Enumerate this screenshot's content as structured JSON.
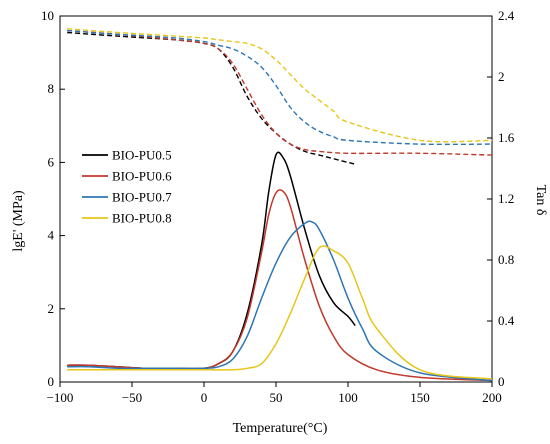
{
  "chart_data": {
    "type": "line",
    "title": "",
    "xlabel": "Temperature(°C)",
    "ylabel": "lgE' (MPa)",
    "y2label": "Tan δ",
    "xlim": [
      -100,
      200
    ],
    "ylim": [
      0,
      10
    ],
    "y2lim": [
      0,
      2.4
    ],
    "xticks": [
      -100,
      -50,
      0,
      50,
      100,
      150,
      200
    ],
    "xtick_labels": [
      "−100",
      "−50",
      "0",
      "50",
      "100",
      "150",
      "200"
    ],
    "yticks": [
      0,
      2,
      4,
      6,
      8,
      10
    ],
    "ytick_labels": [
      "0",
      "2",
      "4",
      "6",
      "8",
      "10"
    ],
    "y2ticks": [
      0,
      0.4,
      0.8,
      1.2,
      1.6,
      2.0,
      2.4
    ],
    "y2tick_labels": [
      "0",
      "0.4",
      "0.8",
      "1.2",
      "1.6",
      "2",
      "2.4"
    ],
    "grid": false,
    "legend_position": "center-left",
    "series": [
      {
        "name": "BIO-PU0.5",
        "color": "#000000",
        "tan_delta": {
          "x": [
            -95,
            -80,
            -60,
            -40,
            -20,
            0,
            10,
            20,
            30,
            40,
            45,
            50,
            55,
            60,
            70,
            80,
            90,
            100,
            105
          ],
          "y": [
            0.11,
            0.11,
            0.1,
            0.09,
            0.09,
            0.09,
            0.12,
            0.2,
            0.45,
            0.9,
            1.25,
            1.49,
            1.47,
            1.35,
            1.0,
            0.7,
            0.52,
            0.43,
            0.37
          ]
        },
        "storage_modulus": {
          "x": [
            -95,
            -60,
            -20,
            0,
            10,
            20,
            30,
            40,
            50,
            60,
            70,
            80,
            90,
            100,
            105
          ],
          "y": [
            9.55,
            9.45,
            9.35,
            9.25,
            9.1,
            8.6,
            7.8,
            7.2,
            6.8,
            6.5,
            6.3,
            6.2,
            6.1,
            6.0,
            5.95
          ]
        }
      },
      {
        "name": "BIO-PU0.6",
        "color": "#c0392b",
        "tan_delta": {
          "x": [
            -95,
            -80,
            -60,
            -40,
            -20,
            0,
            10,
            20,
            30,
            40,
            45,
            50,
            55,
            60,
            70,
            80,
            90,
            100,
            120,
            150,
            200
          ],
          "y": [
            0.11,
            0.11,
            0.1,
            0.09,
            0.09,
            0.09,
            0.12,
            0.2,
            0.42,
            0.85,
            1.1,
            1.24,
            1.25,
            1.15,
            0.8,
            0.5,
            0.3,
            0.18,
            0.08,
            0.03,
            0.01
          ]
        },
        "storage_modulus": {
          "x": [
            -95,
            -60,
            -20,
            0,
            10,
            20,
            30,
            40,
            50,
            60,
            70,
            80,
            100,
            150,
            200
          ],
          "y": [
            9.6,
            9.5,
            9.35,
            9.25,
            9.1,
            8.7,
            8.0,
            7.3,
            6.8,
            6.5,
            6.35,
            6.3,
            6.25,
            6.25,
            6.2
          ]
        }
      },
      {
        "name": "BIO-PU0.7",
        "color": "#2e75b6",
        "tan_delta": {
          "x": [
            -95,
            -80,
            -60,
            -40,
            -20,
            0,
            10,
            20,
            30,
            40,
            50,
            60,
            70,
            75,
            80,
            90,
            100,
            110,
            120,
            150,
            200
          ],
          "y": [
            0.1,
            0.1,
            0.09,
            0.09,
            0.09,
            0.09,
            0.1,
            0.15,
            0.3,
            0.55,
            0.78,
            0.95,
            1.04,
            1.05,
            1.0,
            0.8,
            0.55,
            0.35,
            0.2,
            0.06,
            0.01
          ]
        },
        "storage_modulus": {
          "x": [
            -95,
            -60,
            -20,
            0,
            10,
            20,
            30,
            40,
            50,
            60,
            70,
            80,
            90,
            100,
            150,
            200
          ],
          "y": [
            9.6,
            9.5,
            9.4,
            9.3,
            9.2,
            9.1,
            8.9,
            8.6,
            8.1,
            7.5,
            7.1,
            6.85,
            6.7,
            6.6,
            6.5,
            6.5
          ]
        }
      },
      {
        "name": "BIO-PU0.8",
        "color": "#e6c619",
        "tan_delta": {
          "x": [
            -95,
            -80,
            -60,
            -40,
            -20,
            0,
            20,
            30,
            40,
            50,
            60,
            70,
            80,
            90,
            100,
            110,
            120,
            150,
            200
          ],
          "y": [
            0.08,
            0.08,
            0.08,
            0.08,
            0.08,
            0.08,
            0.08,
            0.09,
            0.12,
            0.25,
            0.45,
            0.68,
            0.88,
            0.86,
            0.78,
            0.55,
            0.35,
            0.08,
            0.02
          ]
        },
        "storage_modulus": {
          "x": [
            -95,
            -60,
            -20,
            0,
            10,
            20,
            30,
            40,
            50,
            60,
            70,
            80,
            90,
            100,
            150,
            200
          ],
          "y": [
            9.65,
            9.55,
            9.45,
            9.4,
            9.35,
            9.3,
            9.25,
            9.1,
            8.8,
            8.4,
            8.0,
            7.7,
            7.4,
            7.1,
            6.6,
            6.6
          ]
        }
      }
    ]
  }
}
